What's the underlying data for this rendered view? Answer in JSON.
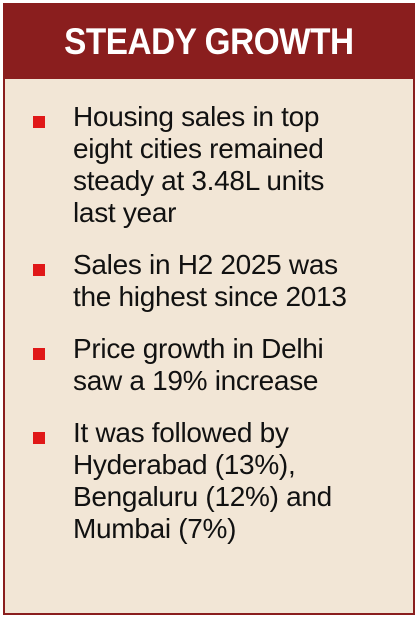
{
  "header": {
    "title": "STEADY GROWTH",
    "background_color": "#8a1e1e",
    "text_color": "#ffffff"
  },
  "panel": {
    "background_color": "#f2e6d6",
    "bullet_color": "#e01818"
  },
  "bullets": [
    {
      "lines": [
        "Housing sales in top",
        "eight cities remained",
        "steady at 3.48L units",
        "last year"
      ]
    },
    {
      "lines": [
        "Sales in H2 2025 was",
        "the highest since 2013"
      ]
    },
    {
      "lines": [
        "Price growth in Delhi",
        "saw a 19% increase"
      ]
    },
    {
      "lines": [
        "It was followed by",
        "Hyderabad (13%),",
        "Bengaluru (12%) and",
        "Mumbai (7%)"
      ]
    }
  ]
}
